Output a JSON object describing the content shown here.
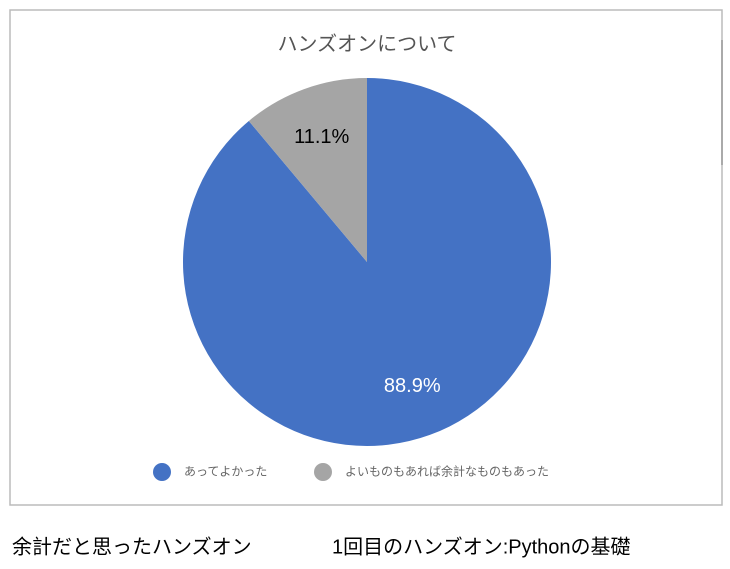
{
  "chart_data": {
    "type": "pie",
    "title": "ハンズオンについて",
    "categories": [
      "あってよかった",
      "よいものもあれば余計なものもあった"
    ],
    "values": [
      88.9,
      11.1
    ],
    "value_labels": [
      "88.9%",
      "11.1%"
    ],
    "colors": [
      "#4472c4",
      "#a5a5a5"
    ],
    "label_colors": [
      "#ffffff",
      "#000000"
    ]
  },
  "caption": {
    "left": "余計だと思ったハンズオン",
    "right": "1回目のハンズオン:Pythonの基礎"
  }
}
